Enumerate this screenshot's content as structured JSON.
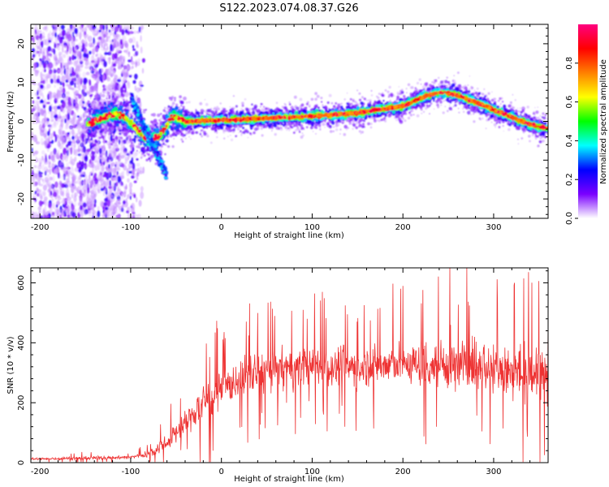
{
  "figure": {
    "title": "S122.2023.074.08.37.G26"
  },
  "chart_data": [
    {
      "type": "heatmap",
      "xlabel": "Height of straight line (km)",
      "ylabel": "Frequency (Hz)",
      "xlim": [
        -210,
        360
      ],
      "ylim": [
        -25,
        25
      ],
      "xticks": [
        -200,
        -100,
        0,
        100,
        200,
        300
      ],
      "xtick_labels": [
        "-200",
        "-100",
        "0",
        "100",
        "200",
        "300"
      ],
      "yticks": [
        -20,
        -10,
        0,
        10,
        20
      ],
      "ytick_labels": [
        "-20",
        "-10",
        "0",
        "10",
        "20"
      ],
      "ridge": {
        "x": [
          -145,
          -130,
          -115,
          -100,
          -90,
          -80,
          -70,
          -62,
          -55,
          -45,
          -40,
          0,
          50,
          100,
          150,
          200,
          225,
          240,
          255,
          280,
          300,
          320,
          340,
          360
        ],
        "y": [
          -0.5,
          1,
          2,
          0,
          -3,
          -5,
          -4,
          -2,
          1,
          0.5,
          0,
          0.3,
          0.8,
          1.3,
          2.2,
          4,
          6.5,
          7.5,
          7,
          5,
          3,
          1,
          -0.8,
          -1.8
        ]
      },
      "noise_region_x": [
        -210,
        -115
      ],
      "colorbar": {
        "label": "Normalized spectral amplitude",
        "range": [
          0.0,
          1.0
        ],
        "ticks": [
          0.0,
          0.2,
          0.4,
          0.6,
          0.8
        ],
        "tick_labels": [
          "0.0",
          "0.2",
          "0.4",
          "0.6",
          "0.8"
        ],
        "colors": [
          "#ffffff",
          "#7a00ff",
          "#0000ff",
          "#00ffff",
          "#00ff00",
          "#ffff00",
          "#ff8000",
          "#ff0000",
          "#ff0080"
        ]
      }
    },
    {
      "type": "line",
      "xlabel": "Height of straight line (km)",
      "ylabel": "SNR (10 * v/v)",
      "xlim": [
        -210,
        360
      ],
      "ylim": [
        0,
        650
      ],
      "xticks": [
        -200,
        -100,
        0,
        100,
        200,
        300
      ],
      "xtick_labels": [
        "-200",
        "-100",
        "0",
        "100",
        "200",
        "300"
      ],
      "yticks": [
        0,
        200,
        400,
        600
      ],
      "ytick_labels": [
        "0",
        "200",
        "400",
        "600"
      ],
      "color": "#ee3333",
      "envelope": {
        "x": [
          -210,
          -100,
          -80,
          -60,
          -40,
          -20,
          0,
          20,
          40,
          60,
          100,
          150,
          200,
          250,
          300,
          330,
          360
        ],
        "mean": [
          12,
          18,
          30,
          70,
          130,
          200,
          240,
          280,
          300,
          310,
          320,
          320,
          330,
          330,
          320,
          300,
          290
        ],
        "spread": [
          8,
          10,
          20,
          45,
          80,
          100,
          110,
          110,
          110,
          110,
          110,
          110,
          120,
          150,
          150,
          150,
          150
        ]
      }
    }
  ]
}
